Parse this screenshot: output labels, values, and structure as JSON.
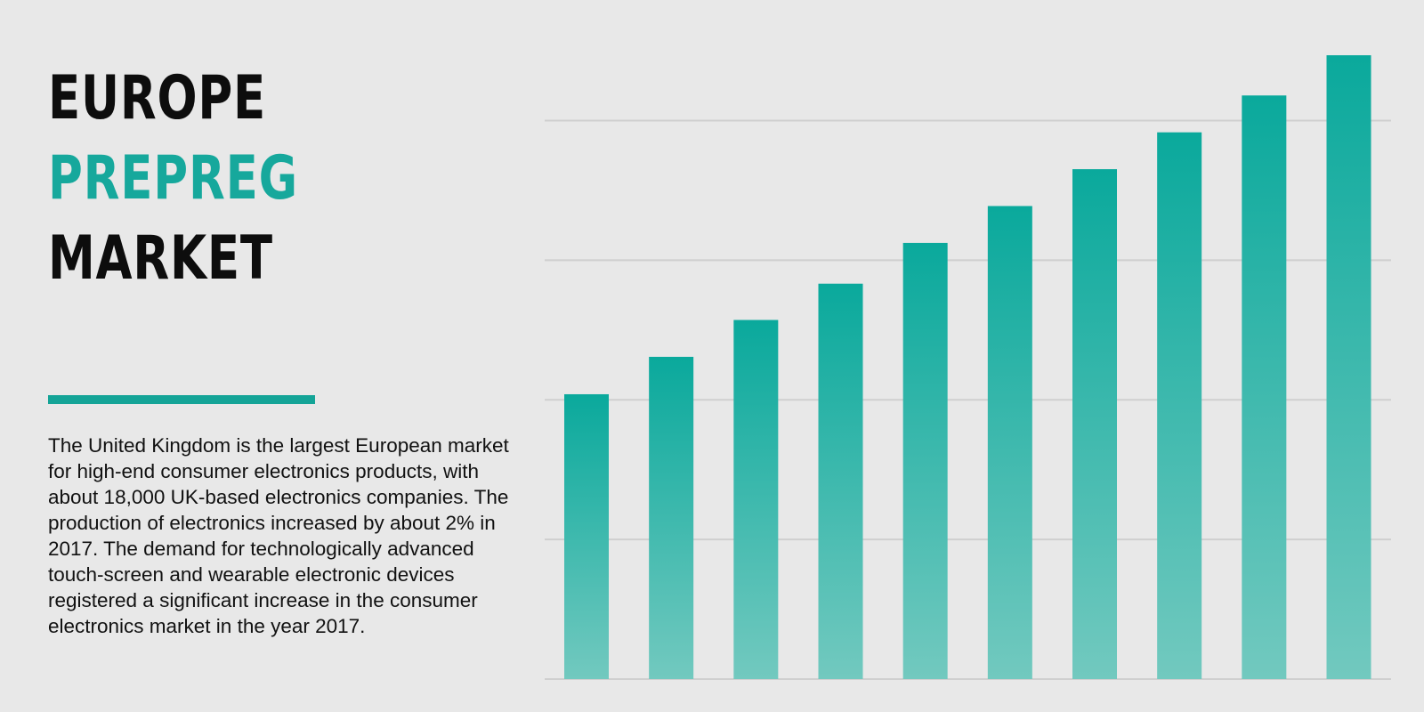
{
  "title": {
    "line1": "EUROPE",
    "line2": "PREPREG",
    "line3": "MARKET"
  },
  "description": "The United Kingdom is the largest European market for high-end consumer electronics products, with about 18,000 UK-based electronics companies. The production of electronics increased by about 2% in 2017. The demand for technologically advanced touch-screen and wearable electronic devices registered a significant increase in the consumer electronics market in the year 2017.",
  "colors": {
    "accent": "#14a497",
    "bar_top": "#0aa99c",
    "bar_bottom": "#72c9bf",
    "gridline": "#cfcfcf",
    "background": "#e8e8e8"
  },
  "chart_data": {
    "type": "bar",
    "title": "",
    "xlabel": "",
    "ylabel": "",
    "ylim": [
      0,
      100
    ],
    "grid": true,
    "gridlines": [
      0,
      25,
      50,
      75,
      100
    ],
    "tick_labels_shown": false,
    "categories": [
      "",
      "",
      "",
      "",
      "",
      "",
      "",
      "",
      "",
      ""
    ],
    "values": [
      51,
      57.7,
      64.3,
      70.8,
      78.1,
      84.7,
      91.3,
      97.9,
      104.5,
      111.7
    ]
  }
}
